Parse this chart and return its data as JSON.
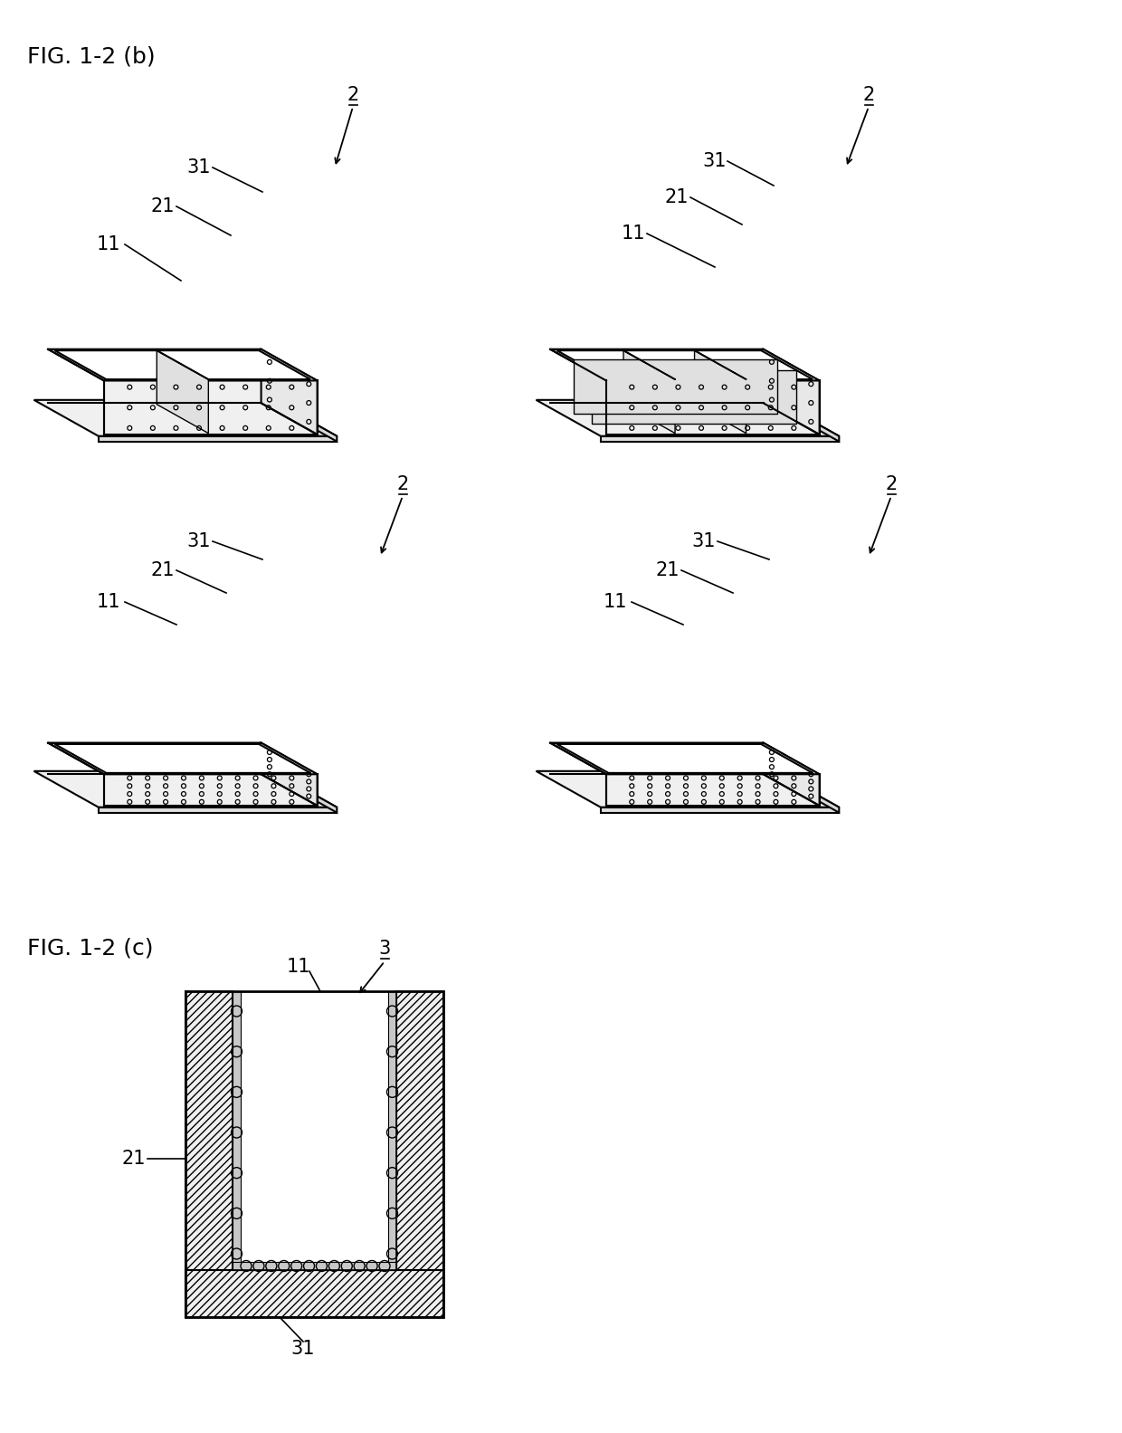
{
  "bg_color": "#ffffff",
  "line_color": "#000000",
  "fig_label_b": "FIG. 1-2 (b)",
  "fig_label_c": "FIG. 1-2 (c)",
  "label_fontsize": 18,
  "ref_fontsize": 15
}
